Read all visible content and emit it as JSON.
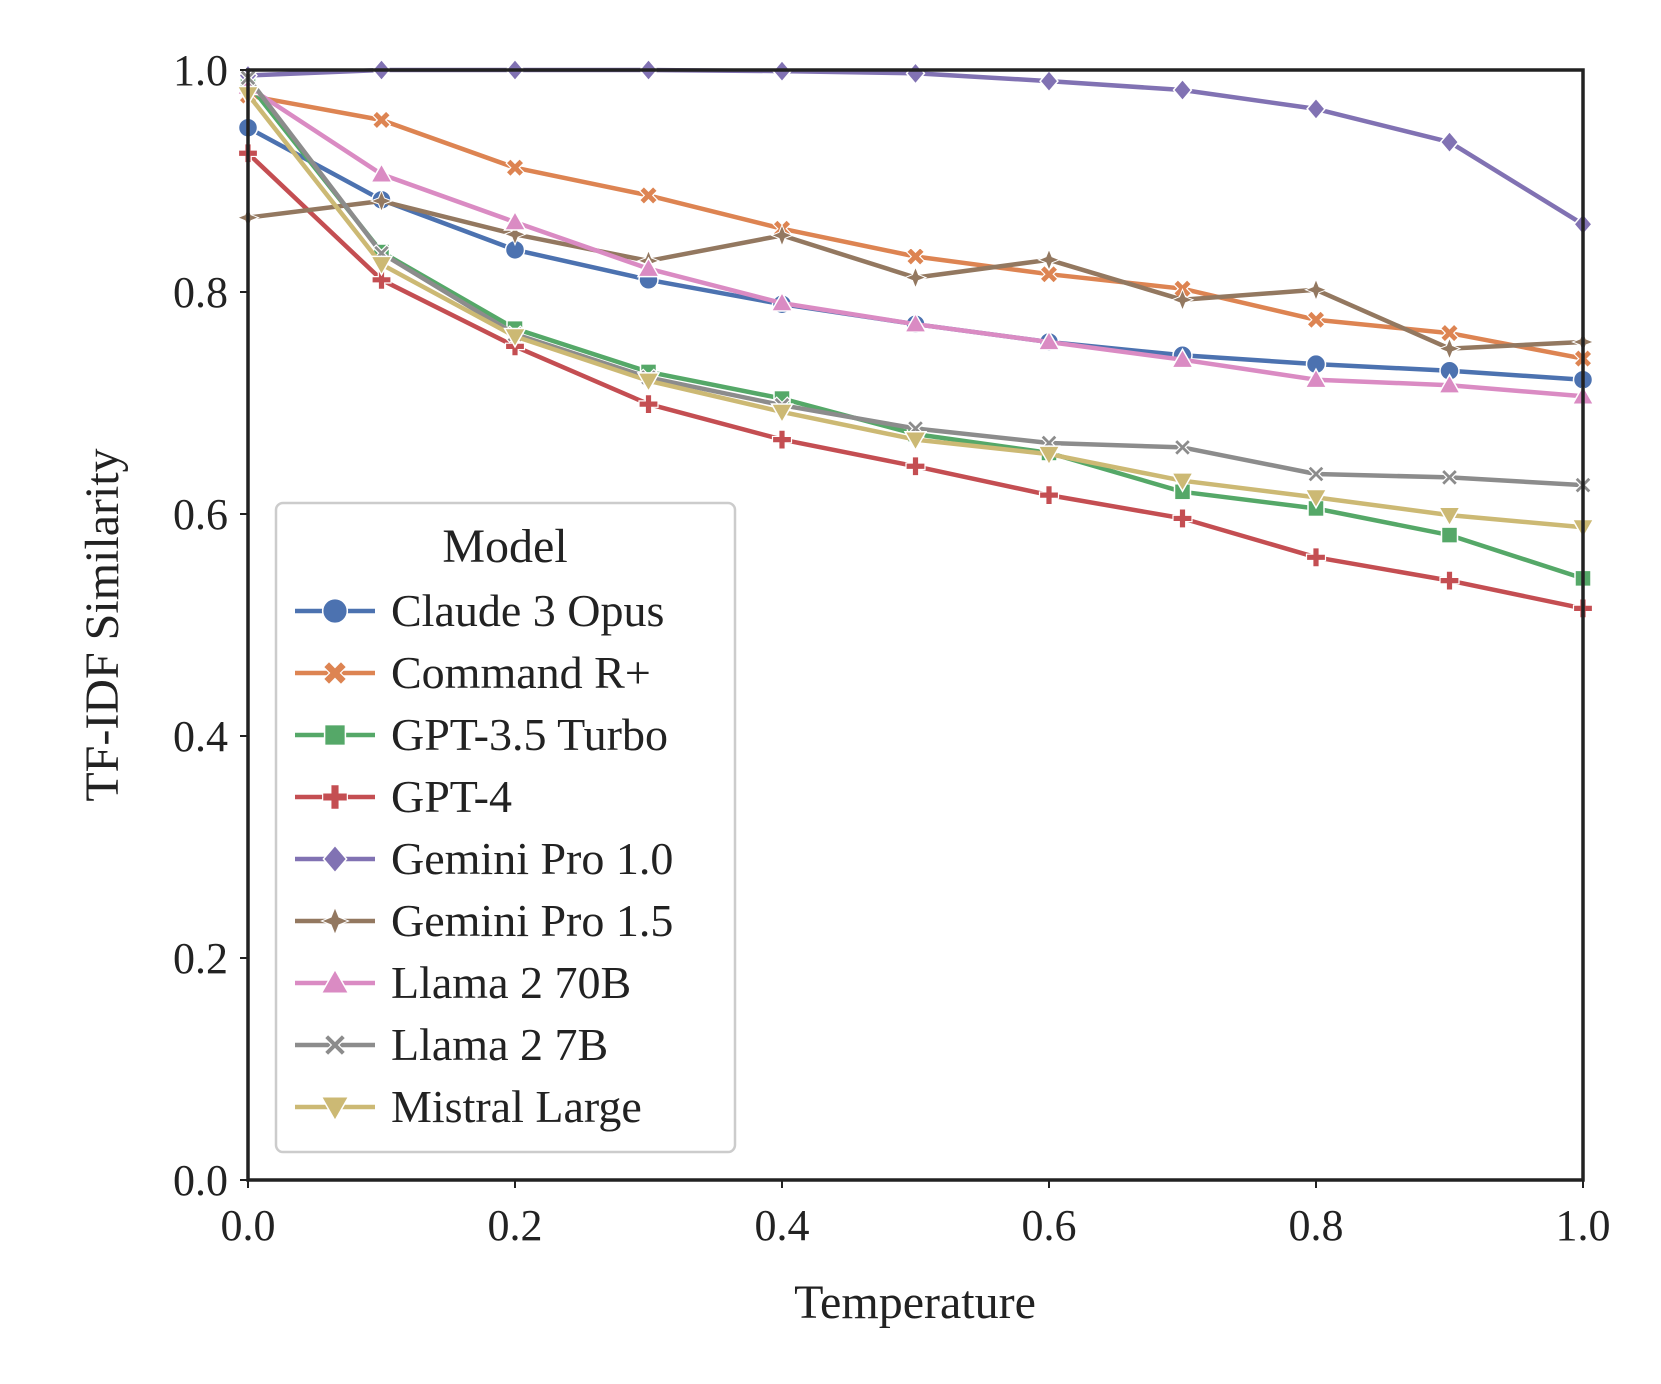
{
  "chart_data": {
    "type": "line",
    "title": "",
    "xlabel": "Temperature",
    "ylabel": "TF-IDF Similarity",
    "xlim": [
      0.0,
      1.0
    ],
    "ylim": [
      0.0,
      1.0
    ],
    "xticks": [
      "0.0",
      "0.2",
      "0.4",
      "0.6",
      "0.8",
      "1.0"
    ],
    "yticks": [
      "0.0",
      "0.2",
      "0.4",
      "0.6",
      "0.8",
      "1.0"
    ],
    "grid": false,
    "legend": {
      "title": "Model",
      "placement": "lower-left"
    },
    "x": [
      0.0,
      0.1,
      0.2,
      0.3,
      0.4,
      0.5,
      0.6,
      0.7,
      0.8,
      0.9,
      1.0
    ],
    "series": [
      {
        "name": "Claude 3 Opus",
        "color": "#4C72B0",
        "marker": "circle",
        "values": [
          0.948,
          0.883,
          0.838,
          0.811,
          0.789,
          0.771,
          0.755,
          0.743,
          0.735,
          0.729,
          0.721
        ]
      },
      {
        "name": "Command R+",
        "color": "#DD8452",
        "marker": "x",
        "values": [
          0.977,
          0.955,
          0.912,
          0.887,
          0.857,
          0.832,
          0.816,
          0.803,
          0.775,
          0.763,
          0.74
        ]
      },
      {
        "name": "GPT-3.5 Turbo",
        "color": "#55A868",
        "marker": "square",
        "values": [
          0.988,
          0.836,
          0.767,
          0.728,
          0.704,
          0.672,
          0.655,
          0.62,
          0.605,
          0.581,
          0.542
        ]
      },
      {
        "name": "GPT-4",
        "color": "#C44E52",
        "marker": "plus",
        "values": [
          0.925,
          0.811,
          0.751,
          0.699,
          0.667,
          0.643,
          0.617,
          0.596,
          0.561,
          0.54,
          0.515
        ]
      },
      {
        "name": "Gemini Pro 1.0",
        "color": "#8172B3",
        "marker": "diamond",
        "values": [
          0.995,
          1.0,
          1.0,
          1.0,
          0.999,
          0.997,
          0.99,
          0.982,
          0.965,
          0.935,
          0.861
        ]
      },
      {
        "name": "Gemini Pro 1.5",
        "color": "#937860",
        "marker": "star",
        "values": [
          0.867,
          0.882,
          0.852,
          0.828,
          0.851,
          0.813,
          0.829,
          0.793,
          0.802,
          0.749,
          0.755
        ]
      },
      {
        "name": "Llama 2 70B",
        "color": "#DA8BC3",
        "marker": "triangle-up",
        "values": [
          0.985,
          0.906,
          0.863,
          0.821,
          0.79,
          0.771,
          0.755,
          0.739,
          0.721,
          0.716,
          0.706
        ]
      },
      {
        "name": "Llama 2 7B",
        "color": "#8C8C8C",
        "marker": "x-thin",
        "values": [
          0.993,
          0.835,
          0.762,
          0.723,
          0.698,
          0.677,
          0.664,
          0.66,
          0.636,
          0.633,
          0.626
        ]
      },
      {
        "name": "Mistral Large",
        "color": "#CCB974",
        "marker": "triangle-down",
        "values": [
          0.978,
          0.825,
          0.76,
          0.72,
          0.692,
          0.667,
          0.654,
          0.63,
          0.615,
          0.599,
          0.588
        ]
      }
    ]
  }
}
